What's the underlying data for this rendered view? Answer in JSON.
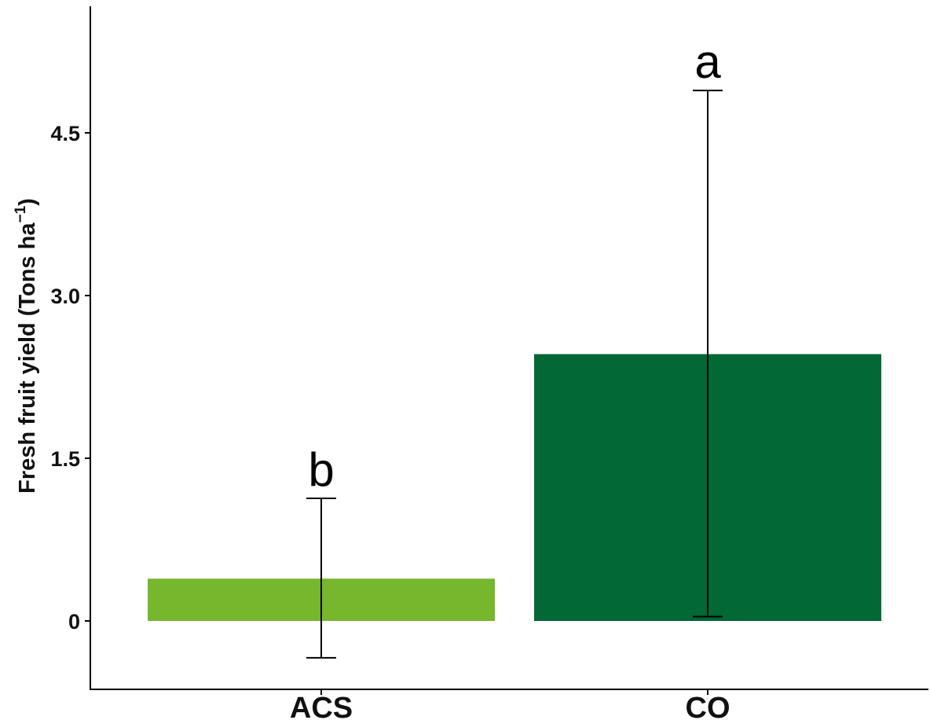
{
  "chart_data": {
    "type": "bar",
    "title": "",
    "xlabel": "",
    "ylabel": {
      "main": "Fresh fruit yield (Tons  ha",
      "superscript": "−1",
      "close": ")"
    },
    "categories": [
      "ACS",
      "CO"
    ],
    "values": [
      0.39,
      2.46
    ],
    "error_low": [
      -0.34,
      0.04
    ],
    "error_high": [
      1.13,
      4.89
    ],
    "significance_labels": [
      "b",
      "a"
    ],
    "colors": [
      "#76b72e",
      "#026835"
    ],
    "ylim": [
      -0.6,
      5.7
    ],
    "yticks": [
      0,
      1.5,
      3.0,
      4.5
    ],
    "ytick_labels": [
      "0",
      "1.5",
      "3.0",
      "4.5"
    ],
    "grid": false,
    "legend": "none"
  }
}
